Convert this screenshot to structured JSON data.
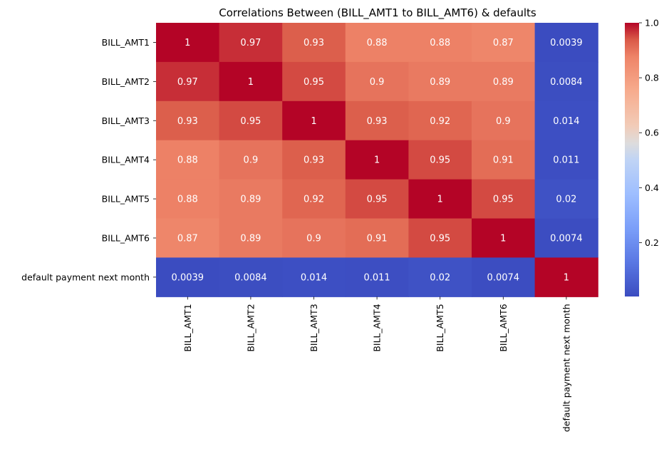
{
  "chart_data": {
    "type": "heatmap",
    "title": "Correlations Between (BILL_AMT1 to BILL_AMT6) & defaults",
    "rows": [
      "BILL_AMT1",
      "BILL_AMT2",
      "BILL_AMT3",
      "BILL_AMT4",
      "BILL_AMT5",
      "BILL_AMT6",
      "default payment next month"
    ],
    "columns": [
      "BILL_AMT1",
      "BILL_AMT2",
      "BILL_AMT3",
      "BILL_AMT4",
      "BILL_AMT5",
      "BILL_AMT6",
      "default payment next month"
    ],
    "values": [
      [
        1,
        0.97,
        0.93,
        0.88,
        0.88,
        0.87,
        0.0039
      ],
      [
        0.97,
        1,
        0.95,
        0.9,
        0.89,
        0.89,
        0.0084
      ],
      [
        0.93,
        0.95,
        1,
        0.93,
        0.92,
        0.9,
        0.014
      ],
      [
        0.88,
        0.9,
        0.93,
        1,
        0.95,
        0.91,
        0.011
      ],
      [
        0.88,
        0.89,
        0.92,
        0.95,
        1,
        0.95,
        0.02
      ],
      [
        0.87,
        0.89,
        0.9,
        0.91,
        0.95,
        1,
        0.0074
      ],
      [
        0.0039,
        0.0084,
        0.014,
        0.011,
        0.02,
        0.0074,
        1
      ]
    ],
    "labels": [
      [
        "1",
        "0.97",
        "0.93",
        "0.88",
        "0.88",
        "0.87",
        "0.0039"
      ],
      [
        "0.97",
        "1",
        "0.95",
        "0.9",
        "0.89",
        "0.89",
        "0.0084"
      ],
      [
        "0.93",
        "0.95",
        "1",
        "0.93",
        "0.92",
        "0.9",
        "0.014"
      ],
      [
        "0.88",
        "0.9",
        "0.93",
        "1",
        "0.95",
        "0.91",
        "0.011"
      ],
      [
        "0.88",
        "0.89",
        "0.92",
        "0.95",
        "1",
        "0.95",
        "0.02"
      ],
      [
        "0.87",
        "0.89",
        "0.9",
        "0.91",
        "0.95",
        "1",
        "0.0074"
      ],
      [
        "0.0039",
        "0.0084",
        "0.014",
        "0.011",
        "0.02",
        "0.0074",
        "1"
      ]
    ],
    "colormap": "coolwarm",
    "colorbar": {
      "range": [
        0.0039,
        1.0
      ],
      "ticks": [
        0.2,
        0.4,
        0.6,
        0.8,
        1.0
      ],
      "tick_labels": [
        "0.2",
        "0.4",
        "0.6",
        "0.8",
        "1.0"
      ]
    }
  }
}
